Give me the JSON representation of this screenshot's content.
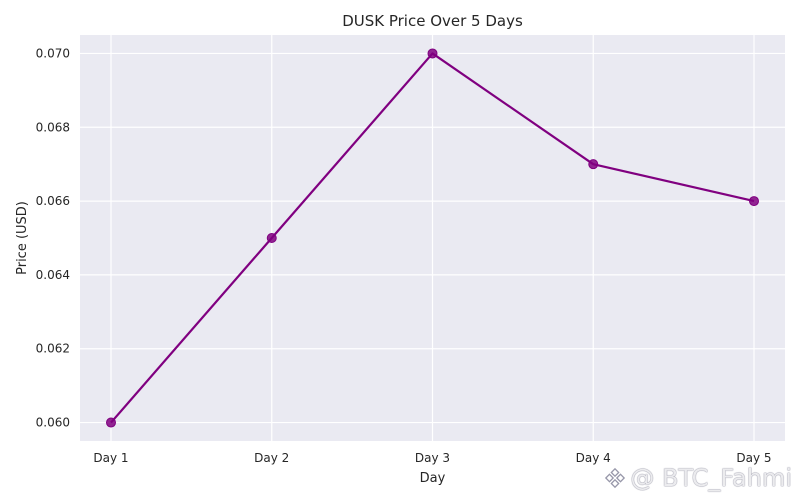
{
  "chart_data": {
    "type": "line",
    "title": "DUSK Price Over 5 Days",
    "xlabel": "Day",
    "ylabel": "Price (USD)",
    "categories": [
      "Day 1",
      "Day 2",
      "Day 3",
      "Day 4",
      "Day 5"
    ],
    "series": [
      {
        "values": [
          0.06,
          0.065,
          0.07,
          0.067,
          0.066
        ],
        "color": "#800080"
      }
    ],
    "ylim": [
      0.0595,
      0.0705
    ],
    "yticks": [
      "0.060",
      "0.062",
      "0.064",
      "0.066",
      "0.068",
      "0.070"
    ],
    "grid": true,
    "marker": "circle",
    "background_color": "#eaeaf2",
    "grid_color": "#ffffff"
  },
  "watermark": {
    "text": "@ BTC_Fahmi",
    "icon": "binance-logo-icon"
  }
}
